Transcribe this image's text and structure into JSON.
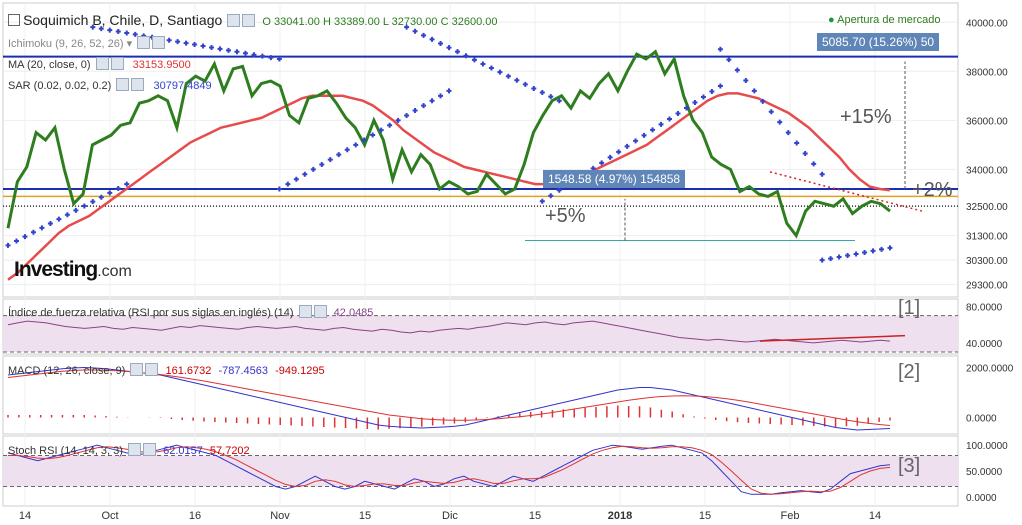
{
  "header": {
    "title": "Soquimich B, Chile, D, Santiago",
    "ohlc": "O 33041.00  H 33389.00  L 32730.00  C 32600.00",
    "market_status": "Apertura de mercado",
    "ind_ichimoku": "Ichimoku (9, 26, 52, 26)",
    "ind_ma": "MA (20, close, 0)",
    "ind_ma_value": "33153.9500",
    "ind_sar": "SAR (0.02, 0.02, 0.2)",
    "ind_sar_value": "30797.4849"
  },
  "annotations": {
    "box_top": "5085.70 (15.26%) 50",
    "box_mid": "1548.58 (4.97%) 154858",
    "pct15": "+15%",
    "pct5": "+5%",
    "pct2": "+2%"
  },
  "logo": {
    "name": "Investing",
    "suffix": ".com"
  },
  "panes": {
    "rsi_label": "Índice de fuerza relativa (RSI por sus siglas en inglés) (14)",
    "rsi_value": "42.0485",
    "macd_label": "MACD (12, 26, close, 9)",
    "macd_v1": "161.6732",
    "macd_v2": "-787.4563",
    "macd_v3": "-949.1295",
    "stoch_label": "Stoch RSI (14, 14, 3, 3)",
    "stoch_v1": "62.0157",
    "stoch_v2": "57.7202",
    "num1": "[1]",
    "num2": "[2]",
    "num3": "[3]"
  },
  "colors": {
    "price": "#2e7d1f",
    "ma": "#e74c4c",
    "sar": "#3344cc",
    "hline": "#1a2fb0",
    "orange": "#e0a020"
  },
  "chart_data": {
    "type": "line",
    "title": "Soquimich B, Chile, D, Santiago",
    "x_ticks": [
      "14",
      "Oct",
      "16",
      "Nov",
      "15",
      "Dic",
      "15",
      "2018",
      "15",
      "Feb",
      "14"
    ],
    "y_ticks": [
      "40000.00",
      "38000.00",
      "36000.00",
      "34000.00",
      "32500.00",
      "31300.00",
      "30300.00",
      "29300.00"
    ],
    "ylim": [
      29000,
      40500
    ],
    "price_series": [
      31600,
      33500,
      34100,
      35500,
      35200,
      35700,
      34000,
      32600,
      33000,
      35000,
      35200,
      35400,
      35800,
      35900,
      36700,
      36800,
      37000,
      36800,
      35700,
      37500,
      37800,
      37600,
      38300,
      37200,
      38100,
      38200,
      37000,
      37500,
      37600,
      37400,
      36200,
      35900,
      36900,
      37000,
      37200,
      36700,
      36100,
      35700,
      35000,
      36000,
      35200,
      33600,
      34800,
      33900,
      34600,
      34200,
      33200,
      33500,
      33300,
      33000,
      33100,
      33800,
      33400,
      33000,
      33200,
      34200,
      35500,
      36200,
      36800,
      37000,
      36500,
      37200,
      36900,
      37500,
      37900,
      37200,
      38000,
      38700,
      38500,
      38800,
      37900,
      38500,
      37000,
      36000,
      35500,
      34500,
      34200,
      34000,
      33100,
      33300,
      33000,
      32900,
      33100,
      31800,
      31300,
      32300,
      32700,
      32600,
      32500,
      32800,
      32200,
      32500,
      32700,
      32600,
      32300
    ],
    "ma_series": [
      29500,
      29800,
      30200,
      30600,
      31000,
      31400,
      31700,
      31900,
      32100,
      32400,
      32700,
      33000,
      33300,
      33600,
      33900,
      34200,
      34500,
      34800,
      35100,
      35300,
      35500,
      35700,
      35800,
      35900,
      36000,
      36100,
      36300,
      36500,
      36700,
      36900,
      37000,
      37000,
      37000,
      37000,
      36900,
      36800,
      36600,
      36300,
      36000,
      35600,
      35300,
      35000,
      34700,
      34500,
      34300,
      34100,
      34000,
      33900,
      33800,
      33700,
      33600,
      33500,
      33400,
      33400,
      33400,
      33500,
      33600,
      33800,
      34000,
      34200,
      34400,
      34600,
      34800,
      35000,
      35300,
      35600,
      35900,
      36200,
      36500,
      36800,
      37000,
      37100,
      37100,
      37000,
      36900,
      36700,
      36500,
      36300,
      36000,
      35700,
      35300,
      34900,
      34500,
      34000,
      33600,
      33300,
      33200,
      33150
    ],
    "sar_series": [
      {
        "from": 0,
        "to": 14,
        "start": 30900,
        "end": 33400
      },
      {
        "from": 10,
        "to": 32,
        "start": 39800,
        "end": 38500
      },
      {
        "from": 32,
        "to": 52,
        "start": 33200,
        "end": 37200
      },
      {
        "from": 47,
        "to": 65,
        "start": 39800,
        "end": 36800
      },
      {
        "from": 63,
        "to": 84,
        "start": 32700,
        "end": 37400
      },
      {
        "from": 84,
        "to": 96,
        "start": 38900,
        "end": 33800
      },
      {
        "from": 96,
        "to": 104,
        "start": 30300,
        "end": 30800
      }
    ],
    "hlines": [
      {
        "value": 38600,
        "label": "resistance"
      },
      {
        "value": 33200,
        "label": "mid"
      },
      {
        "value": 32900,
        "label": "orange"
      },
      {
        "value": 32500,
        "label": "dotted"
      }
    ],
    "rsi": {
      "ylim": [
        30,
        85
      ],
      "ticks": [
        "80.0000",
        "40.0000"
      ],
      "levels": [
        70,
        30
      ],
      "series": [
        60,
        62,
        64,
        63,
        62,
        60,
        58,
        57,
        56,
        57,
        58,
        56,
        55,
        57,
        56,
        55,
        54,
        56,
        58,
        57,
        59,
        58,
        57,
        56,
        55,
        57,
        58,
        57,
        56,
        57,
        58,
        56,
        55,
        54,
        56,
        57,
        55,
        54,
        53,
        55,
        54,
        52,
        51,
        53,
        52,
        54,
        55,
        56,
        55,
        57,
        58,
        60,
        62,
        61,
        60,
        62,
        63,
        61,
        60,
        62,
        63,
        64,
        62,
        60,
        58,
        56,
        54,
        52,
        50,
        48,
        46,
        45,
        44,
        43,
        44,
        43,
        42,
        41,
        42,
        43,
        44,
        43,
        42,
        41,
        40,
        41,
        42,
        43,
        42,
        41,
        42,
        43,
        42
      ]
    },
    "macd": {
      "ylim": [
        -500,
        2300
      ],
      "ticks": [
        "2000.0000",
        "0.0000"
      ],
      "macd_series": [
        1700,
        1750,
        1800,
        1850,
        1900,
        1950,
        1980,
        2000,
        1980,
        1950,
        1900,
        1850,
        1800,
        1750,
        1700,
        1600,
        1500,
        1400,
        1300,
        1200,
        1100,
        1000,
        900,
        800,
        700,
        600,
        500,
        400,
        300,
        200,
        100,
        0,
        -100,
        -200,
        -300,
        -350,
        -380,
        -400,
        -420,
        -400,
        -380,
        -350,
        -300,
        -200,
        -100,
        0,
        100,
        200,
        300,
        400,
        500,
        600,
        700,
        800,
        900,
        1000,
        1100,
        1150,
        1200,
        1200,
        1150,
        1100,
        1000,
        900,
        800,
        700,
        600,
        500,
        400,
        300,
        200,
        100,
        0,
        -100,
        -200,
        -300,
        -400,
        -450,
        -500,
        -480,
        -460,
        -440
      ],
      "signal_series": [
        1600,
        1650,
        1700,
        1750,
        1800,
        1850,
        1880,
        1900,
        1900,
        1890,
        1870,
        1840,
        1800,
        1760,
        1720,
        1660,
        1600,
        1530,
        1460,
        1380,
        1300,
        1220,
        1140,
        1060,
        980,
        900,
        820,
        740,
        660,
        580,
        500,
        420,
        340,
        260,
        180,
        100,
        50,
        0,
        -50,
        -80,
        -100,
        -110,
        -110,
        -100,
        -80,
        -50,
        -10,
        30,
        80,
        140,
        200,
        270,
        340,
        410,
        480,
        550,
        620,
        690,
        750,
        800,
        840,
        860,
        870,
        860,
        840,
        800,
        750,
        690,
        620,
        540,
        460,
        380,
        300,
        220,
        140,
        60,
        -20,
        -100,
        -170,
        -230,
        -280,
        -320
      ],
      "hist": [
        100,
        100,
        100,
        100,
        100,
        100,
        100,
        100,
        80,
        60,
        30,
        10,
        0,
        -10,
        -20,
        -60,
        -100,
        -130,
        -160,
        -180,
        -200,
        -220,
        -240,
        -260,
        -280,
        -300,
        -320,
        -340,
        -360,
        -380,
        -400,
        -420,
        -440,
        -460,
        -480,
        -450,
        -430,
        -400,
        -370,
        -320,
        -280,
        -240,
        -190,
        -100,
        -20,
        50,
        110,
        170,
        220,
        260,
        300,
        330,
        360,
        390,
        420,
        450,
        480,
        460,
        450,
        400,
        310,
        240,
        130,
        40,
        -40,
        -100,
        -150,
        -190,
        -220,
        -240,
        -260,
        -280,
        -300,
        -320,
        -340,
        -360,
        -380,
        -350,
        -330,
        -250,
        -180,
        -120
      ]
    },
    "stoch": {
      "ylim": [
        -10,
        110
      ],
      "ticks": [
        "100.0000",
        "50.0000",
        "0.0000"
      ],
      "levels": [
        80,
        20
      ],
      "k_series": [
        85,
        80,
        75,
        70,
        75,
        80,
        85,
        90,
        95,
        100,
        95,
        90,
        85,
        80,
        85,
        90,
        95,
        100,
        95,
        90,
        85,
        80,
        70,
        60,
        50,
        40,
        30,
        20,
        15,
        20,
        30,
        40,
        30,
        20,
        15,
        20,
        30,
        25,
        20,
        15,
        25,
        35,
        30,
        20,
        25,
        35,
        40,
        30,
        25,
        20,
        30,
        40,
        35,
        30,
        40,
        50,
        60,
        70,
        80,
        90,
        95,
        100,
        98,
        95,
        92,
        95,
        98,
        100,
        95,
        90,
        85,
        70,
        50,
        30,
        10,
        5,
        5,
        5,
        8,
        10,
        12,
        10,
        8,
        15,
        30,
        45,
        50,
        55,
        60,
        62
      ],
      "d_series": [
        80,
        80,
        78,
        75,
        74,
        76,
        80,
        85,
        90,
        95,
        97,
        95,
        92,
        88,
        86,
        87,
        90,
        95,
        97,
        95,
        92,
        87,
        80,
        72,
        62,
        52,
        42,
        32,
        24,
        20,
        22,
        30,
        33,
        30,
        23,
        20,
        22,
        25,
        25,
        22,
        22,
        27,
        30,
        28,
        26,
        28,
        33,
        35,
        31,
        26,
        26,
        31,
        35,
        35,
        37,
        45,
        53,
        63,
        73,
        83,
        90,
        95,
        98,
        97,
        95,
        94,
        95,
        97,
        97,
        95,
        90,
        82,
        67,
        50,
        32,
        15,
        7,
        5,
        6,
        8,
        10,
        11,
        10,
        11,
        18,
        30,
        42,
        50,
        55,
        57
      ]
    }
  }
}
